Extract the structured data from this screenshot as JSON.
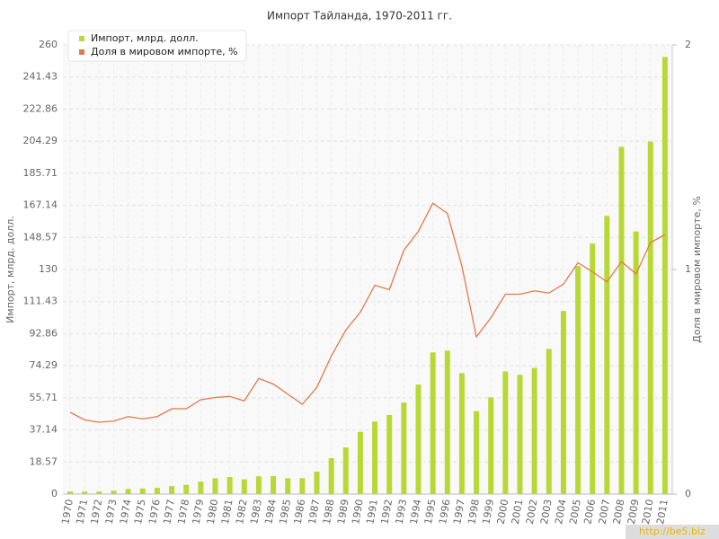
{
  "chart_data": {
    "type": "bar",
    "title": "Импорт Тайланда, 1970-2011 гг.",
    "y_label": "Импорт, млрд. долл.",
    "y2_label": "Доля в мировом импорте, %",
    "watermark": "http://be5.biz",
    "categories": [
      "1970",
      "1971",
      "1972",
      "1973",
      "1974",
      "1975",
      "1976",
      "1977",
      "1978",
      "1979",
      "1980",
      "1981",
      "1982",
      "1983",
      "1984",
      "1985",
      "1986",
      "1987",
      "1988",
      "1989",
      "1990",
      "1991",
      "1992",
      "1993",
      "1994",
      "1995",
      "1996",
      "1997",
      "1998",
      "1999",
      "2000",
      "2001",
      "2002",
      "2003",
      "2004",
      "2005",
      "2006",
      "2007",
      "2008",
      "2009",
      "2010",
      "2011"
    ],
    "series": [
      {
        "name": "Импорт, млрд. долл.",
        "color": "#b8d935",
        "type": "bar",
        "values": [
          1.5,
          1.5,
          1.5,
          2,
          3,
          3.2,
          3.6,
          4.6,
          5.4,
          7.2,
          9.2,
          9.9,
          8.5,
          10.3,
          10.4,
          9.2,
          9.2,
          13,
          20.8,
          27,
          36,
          42,
          45.8,
          53,
          63.4,
          82,
          83,
          70,
          48,
          56,
          71,
          69,
          73,
          84,
          106,
          132,
          145,
          161,
          201,
          152,
          204,
          253
        ]
      },
      {
        "name": "Доля в мировом импорте, %",
        "color": "#e07a4a",
        "type": "line",
        "axis": "y2",
        "values": [
          0.364,
          0.33,
          0.32,
          0.325,
          0.345,
          0.335,
          0.345,
          0.38,
          0.38,
          0.42,
          0.43,
          0.435,
          0.415,
          0.515,
          0.49,
          0.445,
          0.4,
          0.475,
          0.615,
          0.73,
          0.81,
          0.93,
          0.91,
          1.085,
          1.17,
          1.295,
          1.25,
          1.015,
          0.7,
          0.785,
          0.89,
          0.89,
          0.905,
          0.895,
          0.935,
          1.03,
          0.99,
          0.945,
          1.035,
          0.98,
          1.12,
          1.155
        ]
      }
    ],
    "ylim": [
      0,
      260
    ],
    "yticks": [
      0,
      18.57,
      37.14,
      55.71,
      74.29,
      92.86,
      111.43,
      130,
      148.57,
      167.14,
      185.71,
      204.29,
      222.86,
      241.43,
      260
    ],
    "y2lim": [
      0,
      2
    ],
    "y2ticks": [
      0,
      1,
      2
    ],
    "grid": true,
    "legend": "top-left"
  }
}
